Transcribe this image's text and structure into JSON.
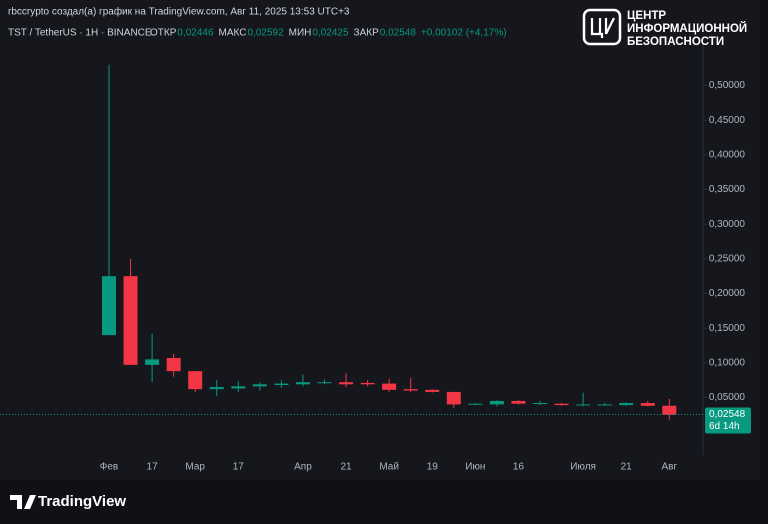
{
  "chart_data": {
    "type": "candlestick",
    "header": "rbccrypto создал(а) график на TradingView.com, Авг 11, 2025 13:53 UTC+3",
    "symbol": "TST / TetherUS · 1H · BINANCE",
    "legend": [
      {
        "label": "ОТКР",
        "value": "0,02446"
      },
      {
        "label": "МАКС",
        "value": "0,02592"
      },
      {
        "label": "МИН",
        "value": "0,02425"
      },
      {
        "label": "ЗАКР",
        "value": "0,02548"
      }
    ],
    "change": "+0,00102 (+4,17%)",
    "categories": [
      "Фев",
      null,
      "17",
      null,
      "Мар",
      null,
      "17",
      null,
      null,
      "Апр",
      null,
      "21",
      null,
      "Май",
      null,
      "19",
      null,
      "Июн",
      null,
      "16",
      null,
      null,
      "Июля",
      null,
      "21",
      null,
      "Авг"
    ],
    "open": [
      0.14,
      0.225,
      0.097,
      0.107,
      0.088,
      0.062,
      0.063,
      0.066,
      0.068,
      0.069,
      0.071,
      0.072,
      0.071,
      0.07,
      0.062,
      0.061,
      0.058,
      0.04,
      0.04,
      0.045,
      0.041,
      0.041,
      0.039,
      0.039,
      0.039,
      0.042,
      0.038
    ],
    "high": [
      0.53,
      0.25,
      0.142,
      0.113,
      0.088,
      0.075,
      0.073,
      0.072,
      0.075,
      0.083,
      0.076,
      0.085,
      0.075,
      0.077,
      0.078,
      0.062,
      0.058,
      0.042,
      0.046,
      0.046,
      0.045,
      0.042,
      0.057,
      0.042,
      0.043,
      0.045,
      0.048
    ],
    "low": [
      0.14,
      0.097,
      0.072,
      0.08,
      0.058,
      0.052,
      0.058,
      0.06,
      0.064,
      0.066,
      0.069,
      0.065,
      0.066,
      0.058,
      0.058,
      0.057,
      0.035,
      0.039,
      0.037,
      0.04,
      0.039,
      0.038,
      0.037,
      0.038,
      0.038,
      0.037,
      0.018
    ],
    "close": [
      0.225,
      0.097,
      0.105,
      0.088,
      0.062,
      0.065,
      0.066,
      0.069,
      0.07,
      0.072,
      0.072,
      0.069,
      0.069,
      0.061,
      0.06,
      0.058,
      0.04,
      0.041,
      0.045,
      0.041,
      0.042,
      0.039,
      0.04,
      0.04,
      0.042,
      0.038,
      0.025
    ],
    "up_color": "#089981",
    "down_color": "#f23645",
    "ylim": [
      -0.033,
      0.56
    ],
    "yticks": [
      {
        "value": 0.05,
        "label": "0,05000"
      },
      {
        "value": 0.1,
        "label": "0,10000"
      },
      {
        "value": 0.15,
        "label": "0,15000"
      },
      {
        "value": 0.2,
        "label": "0,20000"
      },
      {
        "value": 0.25,
        "label": "0,25000"
      },
      {
        "value": 0.3,
        "label": "0,30000"
      },
      {
        "value": 0.35,
        "label": "0,35000"
      },
      {
        "value": 0.4,
        "label": "0,40000"
      },
      {
        "value": 0.45,
        "label": "0,45000"
      },
      {
        "value": 0.5,
        "label": "0,50000"
      }
    ],
    "last_price": {
      "value": 0.02548,
      "label": "0,02548"
    },
    "countdown": "6d 14h"
  },
  "logo": [
    "ЦЕНТР",
    "ИНФОРМАЦИОННОЙ",
    "БЕЗОПАСНОСТИ"
  ],
  "footer": "TradingView"
}
